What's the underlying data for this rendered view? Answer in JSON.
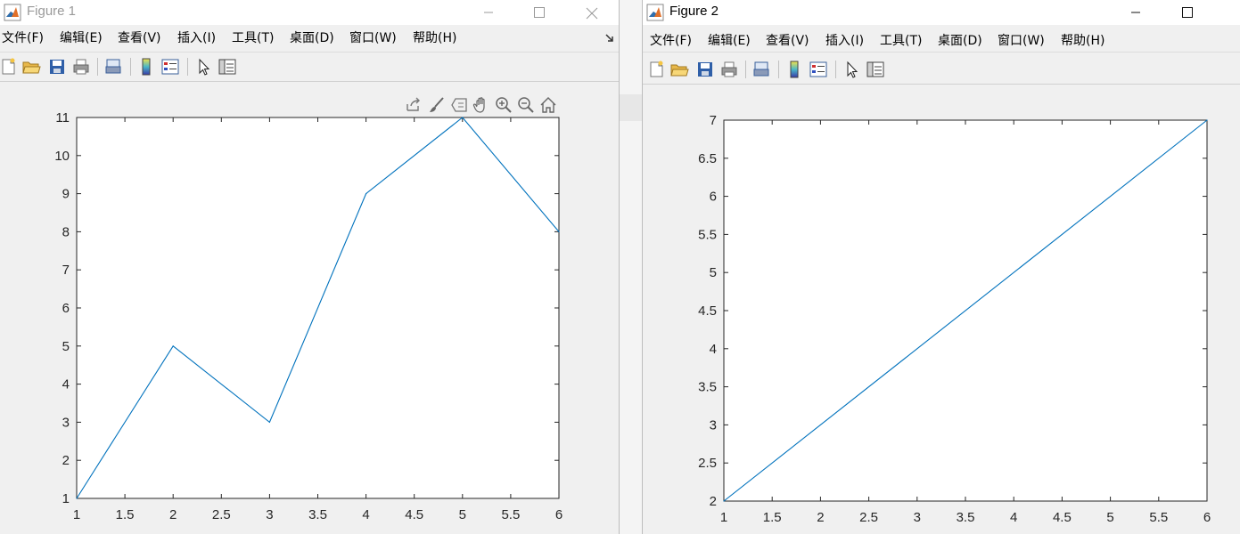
{
  "figures": [
    {
      "title": "Figure 1",
      "menu": [
        "文件(F)",
        "编辑(E)",
        "查看(V)",
        "插入(I)",
        "工具(T)",
        "桌面(D)",
        "窗口(W)",
        "帮助(H)"
      ],
      "axes_toolbar": [
        "export-icon",
        "brush-icon",
        "datatip-icon",
        "pan-icon",
        "zoom-in-icon",
        "zoom-out-icon",
        "home-icon"
      ],
      "chart_data": {
        "type": "line",
        "x": [
          1,
          2,
          3,
          4,
          5,
          6
        ],
        "y": [
          1,
          5,
          3,
          9,
          11,
          8
        ],
        "xlim": [
          1,
          6
        ],
        "ylim": [
          1,
          11
        ],
        "xticks": [
          "1",
          "1.5",
          "2",
          "2.5",
          "3",
          "3.5",
          "4",
          "4.5",
          "5",
          "5.5",
          "6"
        ],
        "yticks": [
          "1",
          "2",
          "3",
          "4",
          "5",
          "6",
          "7",
          "8",
          "9",
          "10",
          "11"
        ],
        "line_color": "#0072bd",
        "grid": false
      }
    },
    {
      "title": "Figure 2",
      "menu": [
        "文件(F)",
        "编辑(E)",
        "查看(V)",
        "插入(I)",
        "工具(T)",
        "桌面(D)",
        "窗口(W)",
        "帮助(H)"
      ],
      "chart_data": {
        "type": "line",
        "x": [
          1,
          6
        ],
        "y": [
          2,
          7
        ],
        "xlim": [
          1,
          6
        ],
        "ylim": [
          2,
          7
        ],
        "xticks": [
          "1",
          "1.5",
          "2",
          "2.5",
          "3",
          "3.5",
          "4",
          "4.5",
          "5",
          "5.5",
          "6"
        ],
        "yticks": [
          "2",
          "2.5",
          "3",
          "3.5",
          "4",
          "4.5",
          "5",
          "5.5",
          "6",
          "6.5",
          "7"
        ],
        "line_color": "#0072bd",
        "grid": false
      }
    }
  ],
  "toolbar_icons": [
    "new-figure-icon",
    "open-file-icon",
    "save-icon",
    "print-icon",
    "print-preview-icon",
    "colorbar-icon",
    "legend-icon",
    "pointer-icon",
    "property-inspector-icon"
  ]
}
